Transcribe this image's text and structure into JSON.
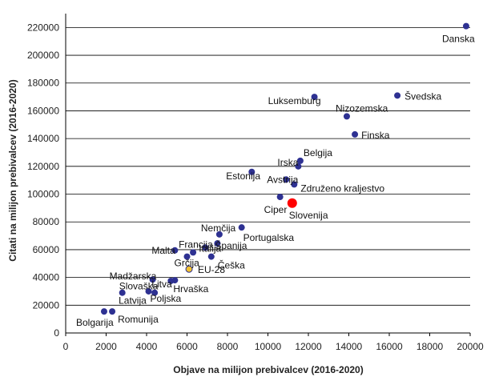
{
  "chart_data": {
    "type": "scatter",
    "xlabel": "Objave na milijon prebivalcev (2016-2020)",
    "ylabel": "Citati na milijon prebivalcev (2016-2020)",
    "xlim": [
      0,
      20000
    ],
    "ylim": [
      0,
      230000
    ],
    "xticks": [
      0,
      2000,
      4000,
      6000,
      8000,
      10000,
      12000,
      14000,
      16000,
      18000,
      20000
    ],
    "yticks": [
      0,
      20000,
      40000,
      60000,
      80000,
      100000,
      120000,
      140000,
      160000,
      180000,
      200000,
      220000
    ],
    "grid": "horizontal",
    "colors": {
      "default": "#2e3192",
      "highlight": "#ff0000",
      "eu": "#f2c230"
    },
    "points": [
      {
        "label": "Danska",
        "x": 19800,
        "y": 221000
      },
      {
        "label": "Švedska",
        "x": 16400,
        "y": 171000
      },
      {
        "label": "Luksemburg",
        "x": 12300,
        "y": 170000
      },
      {
        "label": "Nizozemska",
        "x": 13900,
        "y": 156000
      },
      {
        "label": "Finska",
        "x": 14300,
        "y": 143000
      },
      {
        "label": "Belgija",
        "x": 11600,
        "y": 124000
      },
      {
        "label": "Irska",
        "x": 11500,
        "y": 120000
      },
      {
        "label": "Estonija",
        "x": 9200,
        "y": 116000
      },
      {
        "label": "Avstrija",
        "x": 10900,
        "y": 110500
      },
      {
        "label": "Združeno kraljestvo",
        "x": 11300,
        "y": 107000
      },
      {
        "label": "Ciper",
        "x": 10600,
        "y": 98000
      },
      {
        "label": "Slovenija",
        "x": 11200,
        "y": 93500,
        "highlight": true
      },
      {
        "label": "Nemčija",
        "x": 7600,
        "y": 71000
      },
      {
        "label": "Portugalska",
        "x": 8700,
        "y": 76000
      },
      {
        "label": "Francija",
        "x": 6300,
        "y": 58000
      },
      {
        "label": "Malta",
        "x": 5400,
        "y": 59500
      },
      {
        "label": "Španija",
        "x": 7500,
        "y": 64500
      },
      {
        "label": "Italija",
        "x": 6900,
        "y": 61500
      },
      {
        "label": "Grčija",
        "x": 6000,
        "y": 55000
      },
      {
        "label": "Češka",
        "x": 7200,
        "y": 55000
      },
      {
        "label": "EU-28",
        "x": 6100,
        "y": 46000,
        "eu": true
      },
      {
        "label": "Madžarska",
        "x": 4300,
        "y": 38500
      },
      {
        "label": "Litva",
        "x": 5200,
        "y": 37500
      },
      {
        "label": "Hrvaška",
        "x": 5400,
        "y": 38000
      },
      {
        "label": "Slovaška",
        "x": 2800,
        "y": 29000
      },
      {
        "label": "Poljska",
        "x": 4100,
        "y": 30000
      },
      {
        "label": "Latvija",
        "x": 4400,
        "y": 29000
      },
      {
        "label": "Bolgarija",
        "x": 1900,
        "y": 15500
      },
      {
        "label": "Romunija",
        "x": 2300,
        "y": 15500
      }
    ]
  }
}
